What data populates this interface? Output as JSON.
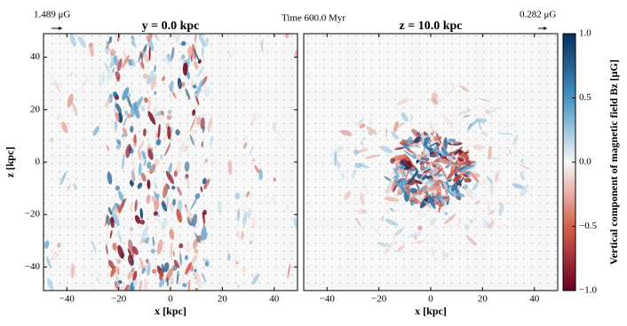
{
  "title": "Time 600.0 Myr",
  "reference_vectors": [
    {
      "label": "1.489 μG"
    },
    {
      "label": "0.282 μG"
    }
  ],
  "chart_data": [
    {
      "type": "heatmap",
      "title": "y = 0.0 kpc",
      "xlabel": "x [kpc]",
      "ylabel": "z [kpc]",
      "xlim": [
        -49,
        49
      ],
      "ylim": [
        -49,
        49
      ],
      "xticks": [
        {
          "value": -40,
          "label": "−40"
        },
        {
          "value": -20,
          "label": "−20"
        },
        0,
        20,
        40
      ],
      "yticks": [
        {
          "value": -40,
          "label": "−40"
        },
        {
          "value": -20,
          "label": "−20"
        },
        0,
        20,
        40
      ]
    },
    {
      "type": "heatmap",
      "title": "z = 10.0 kpc",
      "xlabel": "x [kpc]",
      "xlim": [
        -49,
        49
      ],
      "ylim": [
        -49,
        49
      ],
      "xticks": [
        {
          "value": -40,
          "label": "−40"
        },
        {
          "value": -20,
          "label": "−20"
        },
        0,
        20,
        40
      ]
    }
  ],
  "colorbar": {
    "label": "Vertical component of magnetic field Bz [μG]",
    "lim": [
      -1,
      1
    ],
    "ticks": [
      {
        "value": -1,
        "label": "−1.0"
      },
      {
        "value": -0.5,
        "label": "−0.5"
      },
      {
        "value": 0,
        "label": "0.0"
      },
      {
        "value": 0.5,
        "label": "0.5"
      },
      {
        "value": 1,
        "label": "1.0"
      }
    ],
    "colors": [
      "#67001f",
      "#d6604d",
      "#f7f7f7",
      "#4393c3",
      "#053061"
    ]
  }
}
